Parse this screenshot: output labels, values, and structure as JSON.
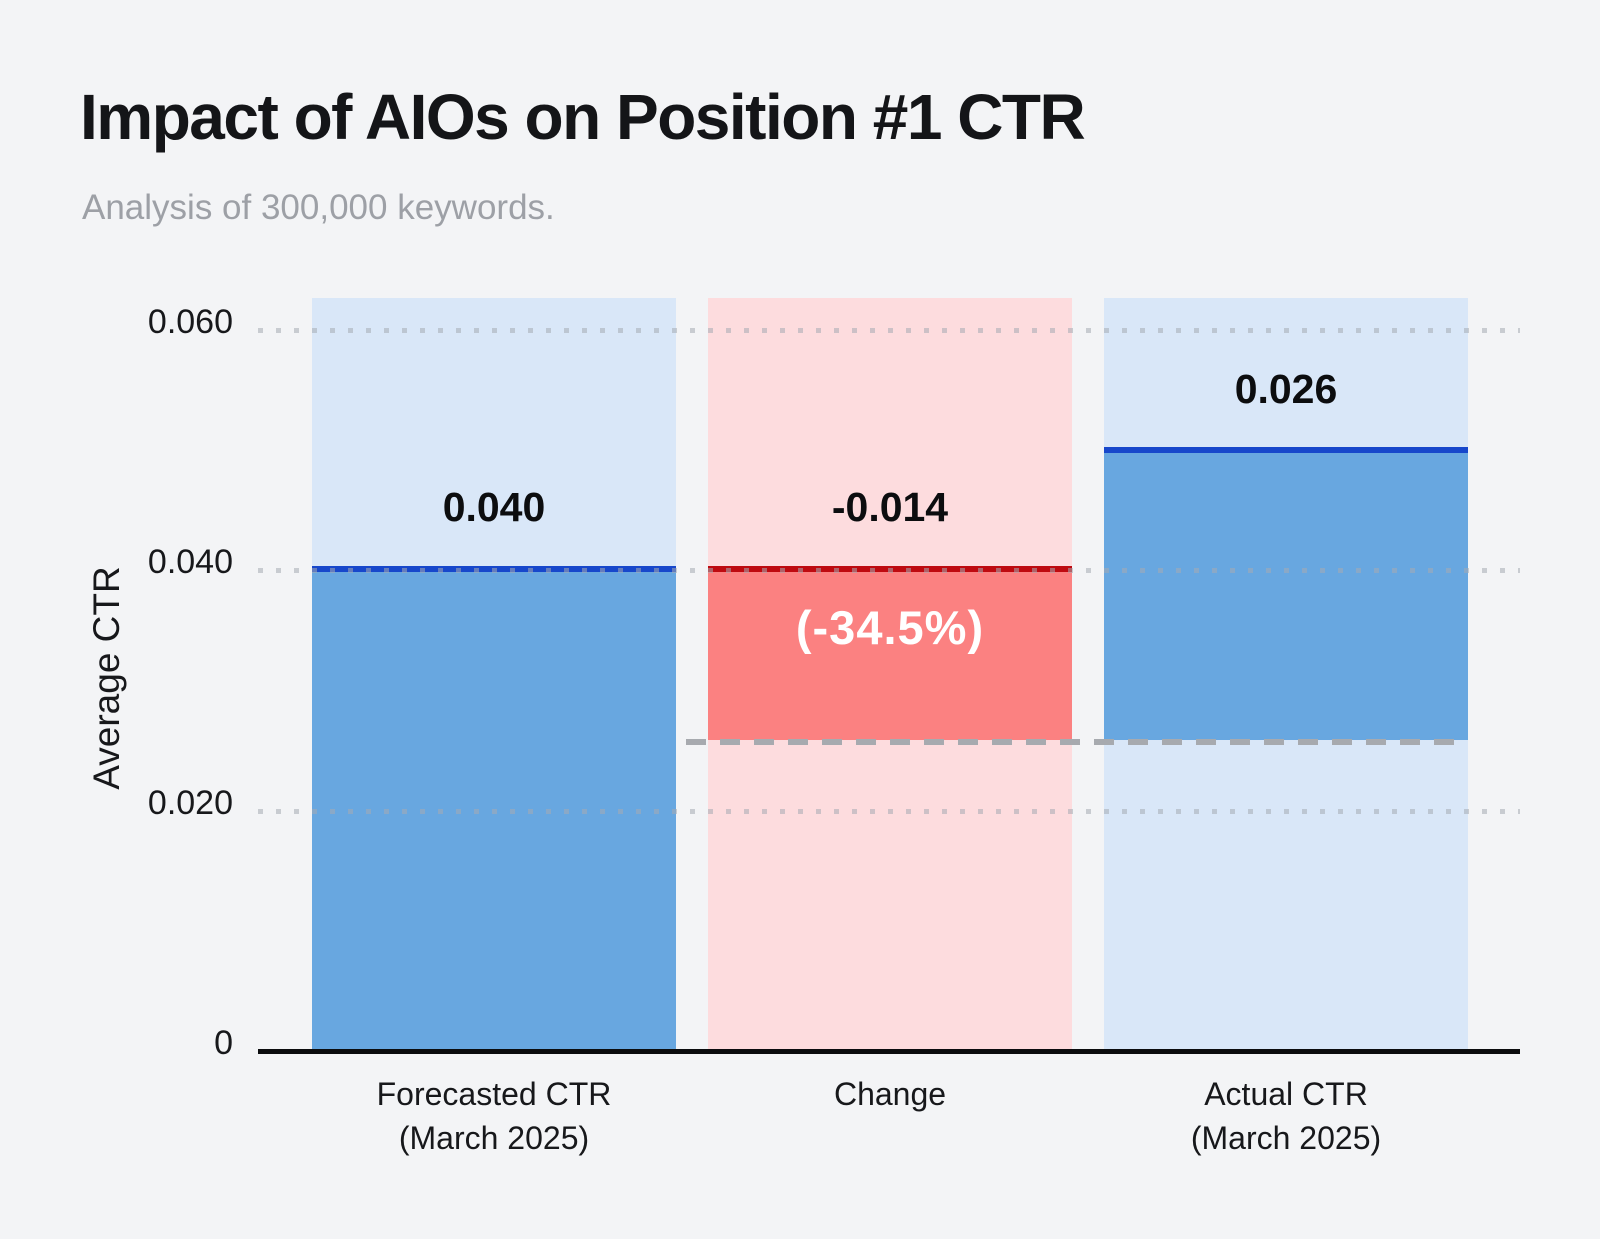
{
  "header": {
    "title": "Impact of AIOs on Position #1 CTR",
    "subtitle": "Analysis of 300,000 keywords."
  },
  "chart": {
    "y_axis": {
      "label": "Average CTR",
      "ticks": {
        "t60": "0.060",
        "t40": "0.040",
        "t20": "0.020",
        "t0": "0"
      }
    },
    "x_axis": {
      "labels": [
        {
          "line1": "Forecasted CTR",
          "line2": "(March 2025)"
        },
        {
          "line1": "Change",
          "line2": ""
        },
        {
          "line1": "Actual CTR",
          "line2": "(March 2025)"
        }
      ]
    },
    "bars": [
      {
        "value_label": "0.040"
      },
      {
        "value_label": "-0.014",
        "pct_label": "(-34.5%)"
      },
      {
        "value_label": "0.026"
      }
    ]
  },
  "chart_data": {
    "type": "bar",
    "subtype": "waterfall",
    "title": "Impact of AIOs on Position #1 CTR",
    "subtitle": "Analysis of 300,000 keywords.",
    "ylabel": "Average CTR",
    "xlabel": "",
    "ylim": [
      0,
      0.0627
    ],
    "yticks": [
      0,
      0.02,
      0.04,
      0.06
    ],
    "grid": "dotted-horizontal",
    "legend": "none",
    "categories": [
      "Forecasted CTR (March 2025)",
      "Change",
      "Actual CTR (March 2025)"
    ],
    "values": [
      0.04,
      -0.014,
      0.026
    ],
    "value_labels": [
      "0.040",
      "-0.014",
      "0.026"
    ],
    "percent_change": -34.5,
    "percent_change_label": "(-34.5%)",
    "annotations": [
      "dashed gray connector line at y=0.026 spanning Change and Actual CTR bars",
      "each bar has a full-height tinted background column"
    ],
    "colors": {
      "page_background": "#F3F4F6",
      "bar_background_blue": "#D9E7F8",
      "bar_fill_blue": "#68A7E0",
      "bar_line_blue": "#1747CB",
      "bar_background_pink": "#FDDCDE",
      "bar_fill_red": "#FB8181",
      "bar_line_red": "#BE0A10",
      "dashed_connector": "#A7AAAF",
      "gridline": "#A5AAB2",
      "axis": "#0B0C0E",
      "title_text": "#141518",
      "subtitle_text": "#9DA0A6",
      "label_text": "#17181B",
      "pct_label_text": "#FFFFFF"
    }
  }
}
